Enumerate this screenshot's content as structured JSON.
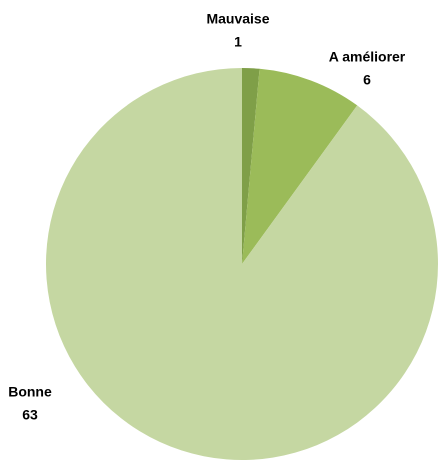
{
  "chart_data": {
    "type": "pie",
    "categories": [
      "Mauvaise",
      "A améliorer",
      "Bonne"
    ],
    "values": [
      1,
      6,
      63
    ],
    "colors": [
      "#7f9f48",
      "#9bbb59",
      "#c5d7a2"
    ]
  }
}
